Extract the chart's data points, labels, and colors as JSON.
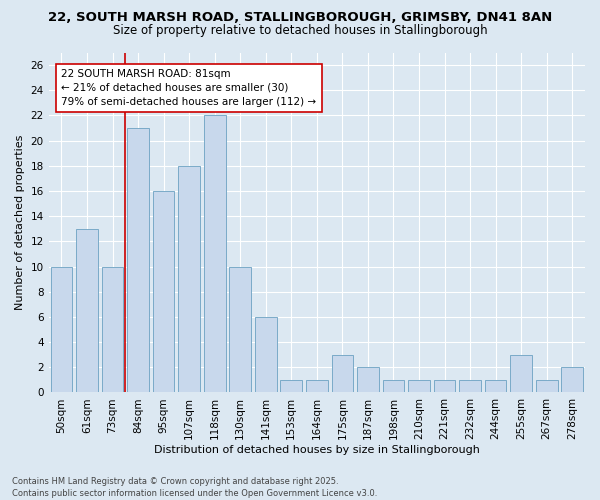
{
  "title_line1": "22, SOUTH MARSH ROAD, STALLINGBOROUGH, GRIMSBY, DN41 8AN",
  "title_line2": "Size of property relative to detached houses in Stallingborough",
  "xlabel": "Distribution of detached houses by size in Stallingborough",
  "ylabel": "Number of detached properties",
  "categories": [
    "50sqm",
    "61sqm",
    "73sqm",
    "84sqm",
    "95sqm",
    "107sqm",
    "118sqm",
    "130sqm",
    "141sqm",
    "153sqm",
    "164sqm",
    "175sqm",
    "187sqm",
    "198sqm",
    "210sqm",
    "221sqm",
    "232sqm",
    "244sqm",
    "255sqm",
    "267sqm",
    "278sqm"
  ],
  "values": [
    10,
    13,
    10,
    21,
    16,
    18,
    22,
    10,
    6,
    1,
    1,
    3,
    2,
    1,
    1,
    1,
    1,
    1,
    3,
    1,
    2
  ],
  "bar_color": "#c8d8ec",
  "bar_edge_color": "#7aaac8",
  "vline_x": 2.5,
  "vline_color": "#cc0000",
  "annotation_text": "22 SOUTH MARSH ROAD: 81sqm\n← 21% of detached houses are smaller (30)\n79% of semi-detached houses are larger (112) →",
  "annotation_box_facecolor": "#ffffff",
  "annotation_box_edgecolor": "#cc0000",
  "ylim": [
    0,
    27
  ],
  "yticks": [
    0,
    2,
    4,
    6,
    8,
    10,
    12,
    14,
    16,
    18,
    20,
    22,
    24,
    26
  ],
  "background_color": "#dce8f2",
  "grid_color": "#ffffff",
  "footer_text": "Contains HM Land Registry data © Crown copyright and database right 2025.\nContains public sector information licensed under the Open Government Licence v3.0.",
  "title_fontsize": 9.5,
  "subtitle_fontsize": 8.5,
  "axis_label_fontsize": 8,
  "tick_fontsize": 7.5,
  "annotation_fontsize": 7.5,
  "footer_fontsize": 6,
  "bar_width": 0.85
}
